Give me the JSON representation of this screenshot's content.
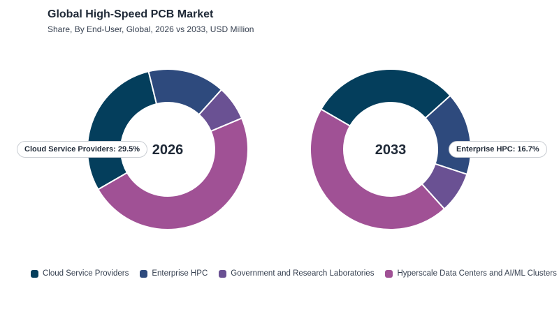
{
  "title": "Global High-Speed PCB Market",
  "subtitle": "Share, By End-User, Global, 2026 vs 2033, USD Million",
  "colors": {
    "cloud": "#043e5c",
    "enterprise": "#2e4a7d",
    "government": "#6a5193",
    "hyperscale": "#a05195"
  },
  "chart_data": [
    {
      "type": "pie",
      "label": "2026",
      "categories": [
        "Cloud Service Providers",
        "Enterprise HPC",
        "Government and Research Laboratories",
        "Hyperscale Data Centers and AI/ML Clusters"
      ],
      "values": [
        29.5,
        15.5,
        7.0,
        48.0
      ],
      "callout": "Cloud Service Providers: 29.5%"
    },
    {
      "type": "pie",
      "label": "2033",
      "categories": [
        "Cloud Service Providers",
        "Enterprise HPC",
        "Government and Research Laboratories",
        "Hyperscale Data Centers and AI/ML Clusters"
      ],
      "values": [
        30.0,
        16.7,
        8.3,
        45.0
      ],
      "callout": "Enterprise HPC: 16.7%"
    }
  ],
  "legend": [
    "Cloud Service Providers",
    "Enterprise HPC",
    "Government and Research Laboratories",
    "Hyperscale Data Centers and AI/ML Clusters"
  ]
}
